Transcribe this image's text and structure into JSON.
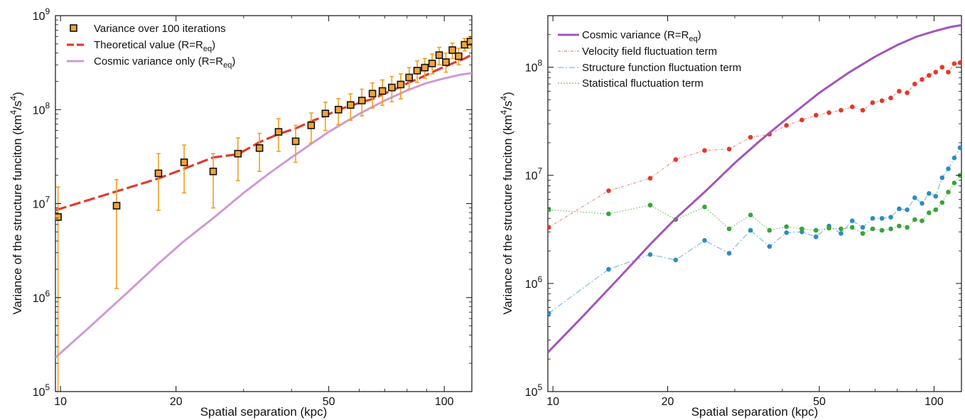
{
  "chart_data": [
    {
      "type": "scatter",
      "xlabel": "Spatial separation (kpc)",
      "ylabel_main": "Variance of the structure funciton (km",
      "ylabel_sup1": "4",
      "ylabel_mid": "/s",
      "ylabel_sup2": "4",
      "ylabel_end": ")",
      "x_scale": "log",
      "y_scale": "log",
      "xlim": [
        9.7,
        118
      ],
      "ylim": [
        100000,
        1000000000
      ],
      "x_ticks": [
        {
          "value": 10,
          "label": "10"
        },
        {
          "value": 20,
          "label": "20"
        },
        {
          "value": 50,
          "label": "50"
        },
        {
          "value": 100,
          "label": "100"
        }
      ],
      "y_ticks": [
        {
          "value": 100000,
          "base": "10",
          "exp": "5"
        },
        {
          "value": 1000000,
          "base": "10",
          "exp": "6"
        },
        {
          "value": 10000000,
          "base": "10",
          "exp": "7"
        },
        {
          "value": 100000000,
          "base": "10",
          "exp": "8"
        },
        {
          "value": 1000000000,
          "base": "10",
          "exp": "9"
        }
      ],
      "legend_position": "top-left",
      "legend": [
        {
          "text": "Variance over 100 iterations",
          "sub": "",
          "tail": ""
        },
        {
          "text": "Theoretical value (R=R",
          "sub": "eq",
          "tail": ")"
        },
        {
          "text": "Cosmic variance only (R=R",
          "sub": "eq",
          "tail": ")"
        }
      ],
      "colors": {
        "points": "#f2a33a",
        "errorbar": "#f0a01e",
        "theory": "#e03c2b",
        "cosmic": "#cf9ad4"
      },
      "points": {
        "x": [
          9.85,
          14,
          18,
          21,
          25,
          29,
          33,
          37,
          41,
          45,
          49,
          53,
          57,
          61,
          65,
          69,
          73,
          77,
          81,
          85,
          89,
          93,
          97,
          101,
          105,
          109,
          113,
          117
        ],
        "y": [
          7200000.0,
          9500000.0,
          21000000.0,
          27500000.0,
          22000000.0,
          34000000.0,
          39000000.0,
          58000000.0,
          46000000.0,
          68000000.0,
          91000000.0,
          100000000.0,
          112000000.0,
          125000000.0,
          148000000.0,
          158000000.0,
          172000000.0,
          185000000.0,
          220000000.0,
          260000000.0,
          280000000.0,
          310000000.0,
          380000000.0,
          320000000.0,
          430000000.0,
          370000000.0,
          490000000.0,
          530000000.0
        ],
        "err_low": [
          100000.0,
          1250000.0,
          8500000.0,
          13000000.0,
          9000000.0,
          17500000.0,
          22000000.0,
          36000000.0,
          27500000.0,
          44000000.0,
          60000000.0,
          69000000.0,
          77000000.0,
          86000000.0,
          104000000.0,
          111000000.0,
          121000000.0,
          130000000.0,
          165000000.0,
          195000000.0,
          215000000.0,
          240000000.0,
          300000000.0,
          250000000.0,
          350000000.0,
          300000000.0,
          420000000.0,
          450000000.0
        ],
        "err_high": [
          15000000.0,
          18000000.0,
          34000000.0,
          42000000.0,
          34000000.0,
          50000000.0,
          56000000.0,
          80000000.0,
          68000000.0,
          92000000.0,
          120000000.0,
          131000000.0,
          147000000.0,
          165000000.0,
          192000000.0,
          207000000.0,
          225000000.0,
          240000000.0,
          280000000.0,
          330000000.0,
          350000000.0,
          390000000.0,
          460000000.0,
          400000000.0,
          510000000.0,
          450000000.0,
          570000000.0,
          600000000.0
        ]
      },
      "theory": {
        "x": [
          9.7,
          14,
          18,
          21,
          25,
          29,
          33,
          37,
          41,
          45,
          49,
          53,
          57,
          61,
          65,
          69,
          73,
          77,
          81,
          85,
          89,
          93,
          97,
          101,
          105,
          109,
          113,
          118
        ],
        "y": [
          8500000.0,
          13500000.0,
          18500000.0,
          23500000.0,
          31000000.0,
          33500000.0,
          45000000.0,
          55000000.0,
          63000000.0,
          75000000.0,
          86000000.0,
          100000000.0,
          110000000.0,
          120000000.0,
          130000000.0,
          145000000.0,
          160000000.0,
          175000000.0,
          195000000.0,
          210000000.0,
          230000000.0,
          250000000.0,
          270000000.0,
          290000000.0,
          310000000.0,
          330000000.0,
          350000000.0,
          385000000.0
        ]
      },
      "cosmic": {
        "x": [
          9.7,
          12,
          15,
          18,
          21,
          25,
          30,
          35,
          40,
          50,
          60,
          70,
          80,
          90,
          100,
          110,
          118
        ],
        "y": [
          230000.0,
          500000.0,
          1150000.0,
          2300000.0,
          4000000.0,
          7000000.0,
          13000000.0,
          21000000.0,
          31000000.0,
          58000000.0,
          90000000.0,
          125000000.0,
          160000000.0,
          192000000.0,
          215000000.0,
          235000000.0,
          245000000.0
        ]
      }
    },
    {
      "type": "line",
      "xlabel": "Spatial separation (kpc)",
      "ylabel_main": "Variance of the structure funciton (km",
      "ylabel_sup1": "4",
      "ylabel_mid": "/s",
      "ylabel_sup2": "4",
      "ylabel_end": ")",
      "x_scale": "log",
      "y_scale": "log",
      "xlim": [
        9.7,
        118
      ],
      "ylim": [
        100000,
        300000000
      ],
      "x_ticks": [
        {
          "value": 10,
          "label": "10"
        },
        {
          "value": 20,
          "label": "20"
        },
        {
          "value": 50,
          "label": "50"
        },
        {
          "value": 100,
          "label": "100"
        }
      ],
      "y_ticks": [
        {
          "value": 100000,
          "base": "10",
          "exp": "5"
        },
        {
          "value": 1000000,
          "base": "10",
          "exp": "6"
        },
        {
          "value": 10000000,
          "base": "10",
          "exp": "7"
        },
        {
          "value": 100000000,
          "base": "10",
          "exp": "8"
        }
      ],
      "legend_position": "top-left",
      "legend": [
        {
          "text": "Cosmic variance (R=R",
          "sub": "eq",
          "tail": ")"
        },
        {
          "text": "Velocity field fluctuation term",
          "sub": "",
          "tail": ""
        },
        {
          "text": "Structure function fluctuation term",
          "sub": "",
          "tail": ""
        },
        {
          "text": "Statistical fluctuation term",
          "sub": "",
          "tail": ""
        }
      ],
      "colors": {
        "cosmic": "#a355b8",
        "velocity": "#e0392b",
        "structure": "#2b8cc4",
        "statistical": "#3aa33a"
      },
      "cosmic": {
        "x": [
          9.7,
          12,
          15,
          18,
          21,
          25,
          30,
          35,
          40,
          50,
          60,
          70,
          80,
          90,
          100,
          110,
          118
        ],
        "y": [
          230000.0,
          500000.0,
          1150000.0,
          2300000.0,
          4000000.0,
          7000000.0,
          13000000.0,
          21000000.0,
          31000000.0,
          58000000.0,
          90000000.0,
          125000000.0,
          160000000.0,
          192000000.0,
          215000000.0,
          235000000.0,
          245000000.0
        ]
      },
      "series": [
        {
          "key": "velocity",
          "x": [
            9.75,
            14,
            18,
            21,
            25,
            29,
            33,
            37,
            41,
            45,
            49,
            53,
            57,
            61,
            65,
            69,
            73,
            77,
            81,
            85,
            89,
            93,
            97,
            101,
            105,
            109,
            113,
            117
          ],
          "y": [
            3300000.0,
            7200000.0,
            9400000.0,
            14000000.0,
            17000000.0,
            17500000.0,
            22500000.0,
            24000000.0,
            29000000.0,
            32500000.0,
            36000000.0,
            38000000.0,
            40000000.0,
            43000000.0,
            40000000.0,
            47000000.0,
            49000000.0,
            52000000.0,
            60000000.0,
            58000000.0,
            70000000.0,
            77000000.0,
            84000000.0,
            90000000.0,
            100000000.0,
            90000000.0,
            108000000.0,
            110000000.0
          ]
        },
        {
          "key": "structure",
          "x": [
            9.75,
            14,
            18,
            21,
            25,
            29,
            33,
            37,
            41,
            45,
            49,
            53,
            57,
            61,
            65,
            69,
            73,
            77,
            81,
            85,
            89,
            93,
            97,
            101,
            105,
            109,
            113,
            117
          ],
          "y": [
            530000.0,
            1350000.0,
            1850000.0,
            1650000.0,
            2500000.0,
            1900000.0,
            3100000.0,
            2200000.0,
            2950000.0,
            3000000.0,
            2700000.0,
            3400000.0,
            2900000.0,
            3800000.0,
            3300000.0,
            4000000.0,
            4000000.0,
            4100000.0,
            4900000.0,
            4800000.0,
            6200000.0,
            5500000.0,
            6800000.0,
            6400000.0,
            9500000.0,
            11500000.0,
            14500000.0,
            18000000.0
          ]
        },
        {
          "key": "statistical",
          "x": [
            9.75,
            14,
            18,
            21,
            25,
            29,
            33,
            37,
            41,
            45,
            49,
            53,
            57,
            61,
            65,
            69,
            73,
            77,
            81,
            85,
            89,
            93,
            97,
            101,
            105,
            109,
            113,
            117
          ],
          "y": [
            4800000.0,
            4400000.0,
            5300000.0,
            3900000.0,
            5100000.0,
            3200000.0,
            4300000.0,
            3100000.0,
            3350000.0,
            3200000.0,
            3100000.0,
            3250000.0,
            3200000.0,
            3300000.0,
            2900000.0,
            3200000.0,
            3100000.0,
            3200000.0,
            3400000.0,
            3300000.0,
            3900000.0,
            3800000.0,
            4500000.0,
            4800000.0,
            5600000.0,
            7000000.0,
            8500000.0,
            10000000.0
          ]
        }
      ]
    }
  ]
}
